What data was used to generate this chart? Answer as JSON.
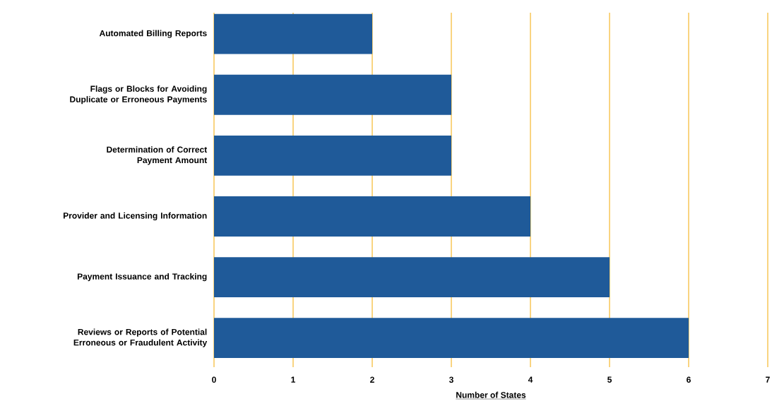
{
  "chart_data": {
    "type": "bar",
    "orientation": "horizontal",
    "categories": [
      "Automated Billing Reports",
      "Flags or Blocks for Avoiding Duplicate or Erroneous Payments",
      "Determination of Correct Payment Amount",
      "Provider and Licensing Information",
      "Payment Issuance and Tracking",
      "Reviews or Reports of Potential Erroneous or Fraudulent Activity"
    ],
    "values": [
      2,
      3,
      3,
      4,
      5,
      6
    ],
    "color": "#1f5a99",
    "xlabel": "Number of States",
    "xlim": [
      0,
      7
    ],
    "xticks": [
      0,
      1,
      2,
      3,
      4,
      5,
      6,
      7
    ],
    "grid": "x"
  }
}
